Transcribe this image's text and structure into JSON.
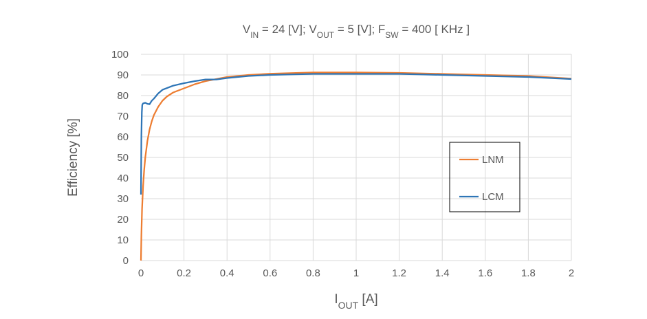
{
  "chart_data": {
    "type": "line",
    "title": {
      "parts": [
        {
          "text": "V"
        },
        {
          "text": "IN",
          "sub": true
        },
        {
          "text": " = 24 [V]; V"
        },
        {
          "text": "OUT",
          "sub": true
        },
        {
          "text": " = 5 [V]; F"
        },
        {
          "text": "SW",
          "sub": true
        },
        {
          "text": " = 400 [ KHz ]"
        }
      ]
    },
    "xlabel": {
      "parts": [
        {
          "text": "I"
        },
        {
          "text": "OUT",
          "sub": true
        },
        {
          "text": "  [A]"
        }
      ]
    },
    "ylabel": "Efficiency [%]",
    "xlim": [
      0,
      2
    ],
    "ylim": [
      0,
      100
    ],
    "xticks": [
      0,
      0.2,
      0.4,
      0.6,
      0.8,
      1,
      1.2,
      1.4,
      1.6,
      1.8,
      2
    ],
    "xtick_labels": [
      "0",
      "0.2",
      "0.4",
      "0.6",
      "0.8",
      "1",
      "1.2",
      "1.4",
      "1.6",
      "1.8",
      "2"
    ],
    "yticks": [
      0,
      10,
      20,
      30,
      40,
      50,
      60,
      70,
      80,
      90,
      100
    ],
    "ytick_labels": [
      "0",
      "10",
      "20",
      "30",
      "40",
      "50",
      "60",
      "70",
      "80",
      "90",
      "100"
    ],
    "grid": true,
    "legend_position": "right",
    "series": [
      {
        "name": "LNM",
        "color": "#ED7D31",
        "points": [
          [
            0,
            0
          ],
          [
            0.002,
            12
          ],
          [
            0.005,
            25
          ],
          [
            0.01,
            36
          ],
          [
            0.015,
            44
          ],
          [
            0.02,
            50
          ],
          [
            0.03,
            58
          ],
          [
            0.04,
            63.5
          ],
          [
            0.05,
            67.5
          ],
          [
            0.06,
            70.5
          ],
          [
            0.08,
            74.5
          ],
          [
            0.1,
            77.5
          ],
          [
            0.12,
            79.5
          ],
          [
            0.15,
            81.5
          ],
          [
            0.2,
            83.5
          ],
          [
            0.25,
            85.5
          ],
          [
            0.3,
            87
          ],
          [
            0.35,
            88
          ],
          [
            0.4,
            89
          ],
          [
            0.5,
            90
          ],
          [
            0.6,
            90.6
          ],
          [
            0.8,
            91.2
          ],
          [
            1.0,
            91.2
          ],
          [
            1.2,
            91
          ],
          [
            1.4,
            90.5
          ],
          [
            1.6,
            90
          ],
          [
            1.8,
            89.5
          ],
          [
            2.0,
            88.2
          ]
        ]
      },
      {
        "name": "LCM",
        "color": "#2E75B6",
        "points": [
          [
            0,
            32
          ],
          [
            0.002,
            60
          ],
          [
            0.004,
            72
          ],
          [
            0.006,
            75.5
          ],
          [
            0.01,
            76.2
          ],
          [
            0.02,
            76.5
          ],
          [
            0.03,
            76
          ],
          [
            0.04,
            75.8
          ],
          [
            0.05,
            77.5
          ],
          [
            0.06,
            78.5
          ],
          [
            0.08,
            81
          ],
          [
            0.1,
            82.8
          ],
          [
            0.15,
            84.8
          ],
          [
            0.2,
            86
          ],
          [
            0.25,
            87
          ],
          [
            0.3,
            87.8
          ],
          [
            0.35,
            87.8
          ],
          [
            0.4,
            88.5
          ],
          [
            0.5,
            89.5
          ],
          [
            0.6,
            90
          ],
          [
            0.8,
            90.5
          ],
          [
            1.0,
            90.5
          ],
          [
            1.2,
            90.5
          ],
          [
            1.4,
            90
          ],
          [
            1.6,
            89.5
          ],
          [
            1.8,
            89
          ],
          [
            2.0,
            88
          ]
        ]
      }
    ]
  }
}
